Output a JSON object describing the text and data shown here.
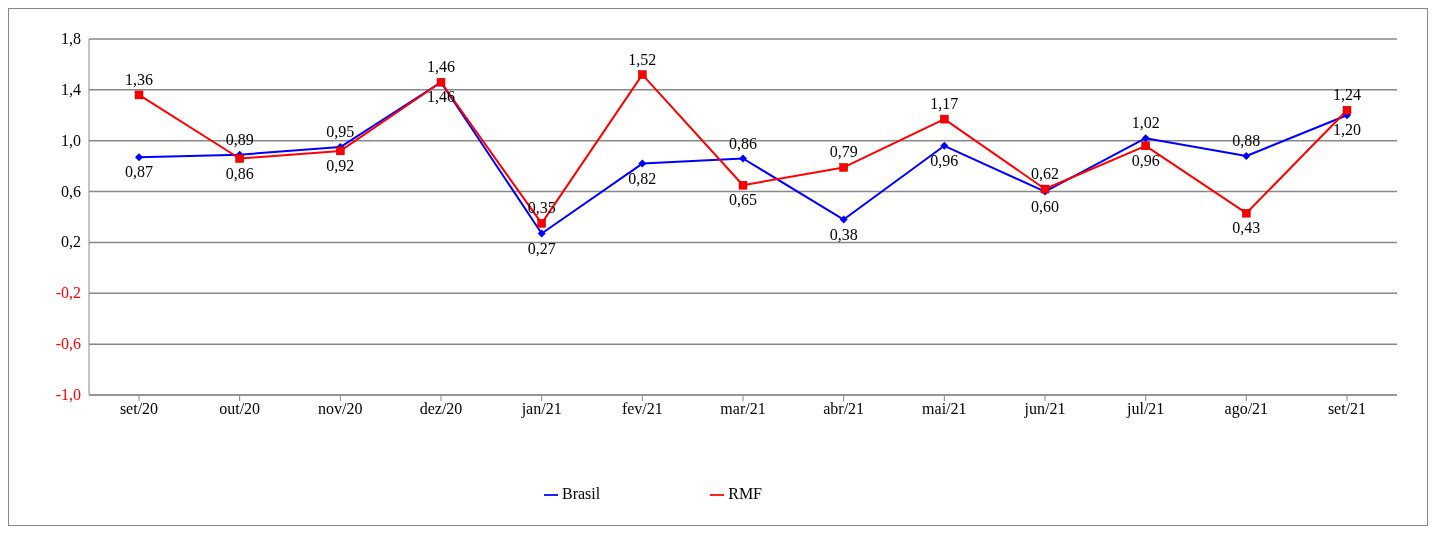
{
  "chart_data": {
    "type": "line",
    "categories": [
      "set/20",
      "out/20",
      "nov/20",
      "dez/20",
      "jan/21",
      "fev/21",
      "mar/21",
      "abr/21",
      "mai/21",
      "jun/21",
      "jul/21",
      "ago/21",
      "set/21"
    ],
    "series": [
      {
        "name": "Brasil",
        "color": "#0000ff",
        "marker": "diamond",
        "values": [
          0.87,
          0.89,
          0.95,
          1.46,
          0.27,
          0.82,
          0.86,
          0.38,
          0.96,
          0.6,
          1.02,
          0.88,
          1.2
        ],
        "value_labels": [
          "0,87",
          "0,89",
          "0,95",
          "1,46",
          "0,27",
          "0,82",
          "0,86",
          "0,38",
          "0,96",
          "0,60",
          "1,02",
          "0,88",
          "1,20"
        ]
      },
      {
        "name": "RMF",
        "color": "#ff0000",
        "marker": "square",
        "values": [
          1.36,
          0.86,
          0.92,
          1.46,
          0.35,
          1.52,
          0.65,
          0.79,
          1.17,
          0.62,
          0.96,
          0.43,
          1.24
        ],
        "value_labels": [
          "1,36",
          "0,86",
          "0,92",
          "1,46",
          "0,35",
          "1,52",
          "0,65",
          "0,79",
          "1,17",
          "0,62",
          "0,96",
          "0,43",
          "1,24"
        ]
      }
    ],
    "ylim": [
      -1.0,
      1.8
    ],
    "yticks": [
      {
        "value": -1.0,
        "label": "-1,0"
      },
      {
        "value": -0.6,
        "label": "-0,6"
      },
      {
        "value": -0.2,
        "label": "-0,2"
      },
      {
        "value": 0.2,
        "label": "0,2"
      },
      {
        "value": 0.6,
        "label": "0,6"
      },
      {
        "value": 1.0,
        "label": "1,0"
      },
      {
        "value": 1.4,
        "label": "1,4"
      },
      {
        "value": 1.8,
        "label": "1,8"
      }
    ],
    "grid": "y",
    "legend": "bottom",
    "line_style": "solid"
  }
}
